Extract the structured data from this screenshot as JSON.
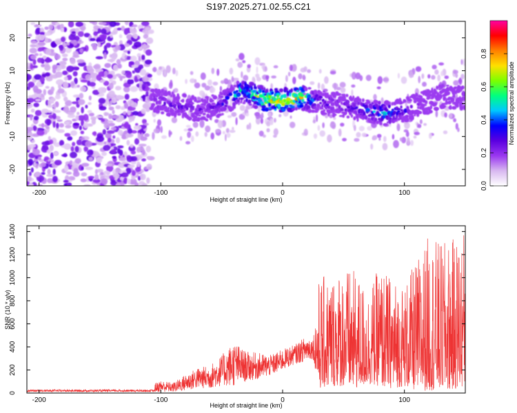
{
  "title": "S197.2025.271.02.55.C21",
  "chart_data": [
    {
      "type": "heatmap",
      "title": "S197.2025.271.02.55.C21",
      "xlabel": "Height of straight line (km)",
      "ylabel": "Frequency (Hz)",
      "xlim": [
        -210,
        150
      ],
      "ylim": [
        -25,
        25
      ],
      "xticks": [
        -200,
        -100,
        0,
        100
      ],
      "yticks": [
        -20,
        -10,
        0,
        10,
        20
      ],
      "colorbar": {
        "label": "Normalized spectral amplitude",
        "range": [
          0.0,
          1.0
        ],
        "ticks": [
          0.0,
          0.2,
          0.4,
          0.6,
          0.8
        ],
        "colormap": "rainbow",
        "colors": [
          "#ffffff",
          "#d8b8f0",
          "#9a38f0",
          "#5a00e0",
          "#0000ff",
          "#00c8ff",
          "#00ff80",
          "#7cff00",
          "#ffe000",
          "#ff8000",
          "#ff0000",
          "#ff00a0"
        ]
      },
      "ridge": {
        "description": "frequency centroid of the signal ridge versus height",
        "x": [
          -108,
          -95,
          -80,
          -65,
          -50,
          -40,
          -35,
          -25,
          -15,
          -5,
          5,
          15,
          25,
          40,
          55,
          70,
          85,
          100,
          115,
          130,
          148
        ],
        "frequency": [
          1,
          0,
          -1,
          -2,
          0,
          2,
          4,
          3,
          1,
          1,
          1,
          2,
          1,
          0,
          -1,
          -2,
          -3,
          -2,
          0,
          2,
          2
        ],
        "peak_amplitude": [
          0.3,
          0.3,
          0.3,
          0.28,
          0.35,
          0.5,
          0.6,
          0.65,
          0.9,
          0.95,
          0.95,
          0.9,
          0.45,
          0.3,
          0.35,
          0.45,
          0.55,
          0.35,
          0.25,
          0.2,
          0.2
        ]
      },
      "background": {
        "noise_region_x": [
          -210,
          -108
        ],
        "noise_amplitude": 0.12
      }
    },
    {
      "type": "line",
      "xlabel": "Height of straight line (km)",
      "ylabel": "SNR (10 * v/v)",
      "xlim": [
        -210,
        150
      ],
      "ylim": [
        0,
        1450
      ],
      "xticks": [
        -200,
        -100,
        0,
        100
      ],
      "yticks": [
        0,
        200,
        400,
        600,
        800,
        1000,
        1200,
        1400
      ],
      "series": [
        {
          "name": "SNR",
          "color": "#ee3333",
          "envelope_x": [
            -210,
            -130,
            -110,
            -100,
            -90,
            -80,
            -70,
            -60,
            -50,
            -40,
            -30,
            -20,
            -10,
            0,
            10,
            20,
            25,
            30,
            40,
            50,
            60,
            70,
            80,
            90,
            100,
            110,
            120,
            130,
            140,
            150
          ],
          "envelope_max": [
            40,
            40,
            60,
            110,
            90,
            160,
            220,
            240,
            330,
            450,
            360,
            350,
            330,
            380,
            420,
            500,
            480,
            1000,
            1040,
            1100,
            1050,
            900,
            1100,
            1000,
            950,
            1150,
            1380,
            1300,
            1340,
            1450
          ],
          "envelope_min": [
            0,
            0,
            5,
            10,
            10,
            20,
            40,
            40,
            60,
            60,
            100,
            120,
            150,
            200,
            250,
            280,
            300,
            40,
            60,
            60,
            40,
            80,
            60,
            40,
            60,
            20,
            20,
            30,
            30,
            60
          ]
        }
      ]
    }
  ]
}
